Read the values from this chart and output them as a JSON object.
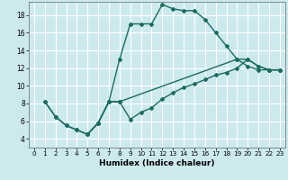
{
  "xlabel": "Humidex (Indice chaleur)",
  "background_color": "#cce9ee",
  "grid_color": "#ffffff",
  "line_color": "#1a6b60",
  "xlim": [
    -0.5,
    23.5
  ],
  "ylim": [
    3,
    19.5
  ],
  "xticks": [
    0,
    1,
    2,
    3,
    4,
    5,
    6,
    7,
    8,
    9,
    10,
    11,
    12,
    13,
    14,
    15,
    16,
    17,
    18,
    19,
    20,
    21,
    22,
    23
  ],
  "yticks": [
    4,
    6,
    8,
    10,
    12,
    14,
    16,
    18
  ],
  "series": [
    {
      "x": [
        1,
        2,
        3,
        4,
        5,
        6,
        7,
        8,
        9,
        10,
        11,
        12,
        13,
        14,
        15,
        16,
        17,
        18,
        19,
        20,
        21,
        22,
        23
      ],
      "y": [
        8.2,
        6.5,
        5.5,
        5.0,
        4.5,
        5.8,
        8.2,
        13.0,
        17.0,
        17.0,
        17.0,
        19.2,
        18.7,
        18.5,
        18.5,
        17.5,
        16.0,
        14.5,
        13.0,
        12.2,
        11.8,
        11.8,
        11.8
      ]
    },
    {
      "x": [
        1,
        2,
        3,
        4,
        5,
        6,
        7,
        8,
        19,
        20,
        21,
        22,
        23
      ],
      "y": [
        8.2,
        6.5,
        5.5,
        5.0,
        4.5,
        5.8,
        8.2,
        8.2,
        13.0,
        13.0,
        12.2,
        11.8,
        11.8
      ]
    },
    {
      "x": [
        5,
        6,
        7,
        8,
        9,
        10,
        11,
        12,
        13,
        14,
        15,
        16,
        17,
        18,
        19,
        20,
        21,
        22,
        23
      ],
      "y": [
        4.5,
        5.8,
        8.2,
        8.2,
        6.2,
        7.0,
        7.5,
        8.5,
        9.2,
        9.8,
        10.2,
        10.7,
        11.2,
        11.5,
        12.0,
        13.0,
        12.2,
        11.8,
        11.8
      ]
    }
  ]
}
